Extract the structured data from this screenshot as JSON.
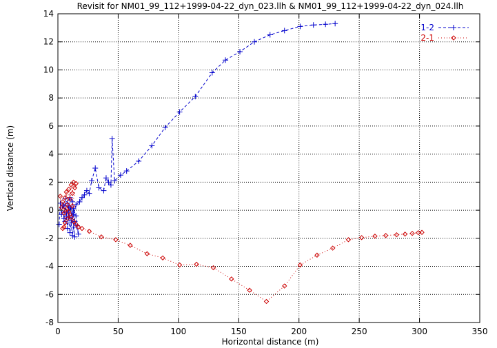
{
  "chart_data": {
    "type": "scatter",
    "title": "Revisit for NM01_99_112+1999-04-22_dyn_023.llh & NM01_99_112+1999-04-22_dyn_024.llh",
    "xlabel": "Horizontal distance (m)",
    "ylabel": "Vertical distance (m)",
    "xlim": [
      0,
      350
    ],
    "ylim": [
      -8,
      14
    ],
    "xticks": [
      0,
      50,
      100,
      150,
      200,
      250,
      300,
      350
    ],
    "yticks": [
      -8,
      -6,
      -4,
      -2,
      0,
      2,
      4,
      6,
      8,
      10,
      12,
      14
    ],
    "grid": true,
    "legend_position": "top-right",
    "series": [
      {
        "name": "1-2",
        "color": "#0000cc",
        "marker": "plus",
        "line": "dashed",
        "points": [
          [
            1,
            -1.0
          ],
          [
            2,
            0.5
          ],
          [
            3,
            -0.3
          ],
          [
            4,
            0.4
          ],
          [
            5,
            -0.6
          ],
          [
            6,
            -0.8
          ],
          [
            5,
            0.3
          ],
          [
            7,
            -0.1
          ],
          [
            8,
            -1.3
          ],
          [
            9,
            -0.5
          ],
          [
            10,
            -1.6
          ],
          [
            11,
            -0.9
          ],
          [
            12,
            -1.8
          ],
          [
            13,
            -1.2
          ],
          [
            14,
            -1.9
          ],
          [
            12,
            -0.4
          ],
          [
            10,
            0.2
          ],
          [
            9,
            -0.2
          ],
          [
            11,
            -0.7
          ],
          [
            13,
            0.1
          ],
          [
            15,
            -0.4
          ],
          [
            16,
            -1.1
          ],
          [
            17,
            -1.7
          ],
          [
            14,
            -0.8
          ],
          [
            12,
            0.6
          ],
          [
            10,
            0.9
          ],
          [
            8,
            0.5
          ],
          [
            6,
            0.8
          ],
          [
            7,
            -0.4
          ],
          [
            9,
            0.3
          ],
          [
            11,
            0.1
          ],
          [
            13,
            -0.3
          ],
          [
            15,
            0.4
          ],
          [
            18,
            0.6
          ],
          [
            20,
            0.9
          ],
          [
            22,
            1.1
          ],
          [
            24,
            1.4
          ],
          [
            26,
            1.2
          ],
          [
            28,
            2.1
          ],
          [
            31,
            3.0
          ],
          [
            34,
            1.6
          ],
          [
            38,
            1.4
          ],
          [
            40,
            2.3
          ],
          [
            42,
            2.0
          ],
          [
            44,
            1.8
          ],
          [
            45,
            5.1
          ],
          [
            47,
            2.1
          ],
          [
            52,
            2.5
          ],
          [
            57,
            2.8
          ],
          [
            67,
            3.5
          ],
          [
            78,
            4.6
          ],
          [
            89,
            5.9
          ],
          [
            101,
            7.0
          ],
          [
            114,
            8.1
          ],
          [
            128,
            9.8
          ],
          [
            139,
            10.7
          ],
          [
            151,
            11.3
          ],
          [
            163,
            12.0
          ],
          [
            176,
            12.5
          ],
          [
            188,
            12.8
          ],
          [
            201,
            13.1
          ],
          [
            212,
            13.2
          ],
          [
            222,
            13.25
          ],
          [
            230,
            13.3
          ]
        ]
      },
      {
        "name": "2-1",
        "color": "#cc0000",
        "marker": "diamond",
        "line": "dotted",
        "points": [
          [
            2,
            1.0
          ],
          [
            3,
            0.2
          ],
          [
            4,
            0.6
          ],
          [
            5,
            -0.2
          ],
          [
            6,
            0.9
          ],
          [
            7,
            1.3
          ],
          [
            8,
            0.4
          ],
          [
            9,
            1.5
          ],
          [
            10,
            0.8
          ],
          [
            11,
            1.8
          ],
          [
            12,
            1.2
          ],
          [
            13,
            2.0
          ],
          [
            14,
            1.6
          ],
          [
            15,
            1.9
          ],
          [
            12,
            0.3
          ],
          [
            10,
            -0.3
          ],
          [
            8,
            -0.6
          ],
          [
            6,
            -0.9
          ],
          [
            5,
            -1.2
          ],
          [
            4,
            -1.3
          ],
          [
            7,
            0.1
          ],
          [
            9,
            -0.1
          ],
          [
            11,
            -0.5
          ],
          [
            13,
            -0.8
          ],
          [
            15,
            -1.0
          ],
          [
            17,
            -1.2
          ],
          [
            20,
            -1.3
          ],
          [
            26,
            -1.5
          ],
          [
            36,
            -1.9
          ],
          [
            48,
            -2.1
          ],
          [
            60,
            -2.5
          ],
          [
            74,
            -3.1
          ],
          [
            87,
            -3.4
          ],
          [
            101,
            -3.9
          ],
          [
            115,
            -3.85
          ],
          [
            129,
            -4.1
          ],
          [
            144,
            -4.9
          ],
          [
            159,
            -5.7
          ],
          [
            173,
            -6.5
          ],
          [
            188,
            -5.4
          ],
          [
            201,
            -3.9
          ],
          [
            215,
            -3.2
          ],
          [
            228,
            -2.7
          ],
          [
            241,
            -2.1
          ],
          [
            252,
            -1.95
          ],
          [
            263,
            -1.85
          ],
          [
            272,
            -1.8
          ],
          [
            281,
            -1.75
          ],
          [
            288,
            -1.7
          ],
          [
            294,
            -1.65
          ],
          [
            299,
            -1.6
          ],
          [
            302,
            -1.58
          ]
        ]
      }
    ]
  }
}
